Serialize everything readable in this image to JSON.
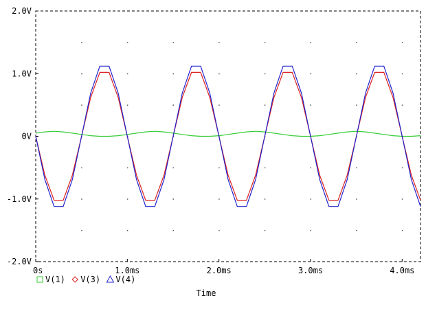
{
  "chart_data": {
    "type": "line",
    "xlabel": "Time",
    "ylabel": "",
    "xlim": [
      0,
      4.2
    ],
    "ylim": [
      -2.0,
      2.0
    ],
    "x_unit": "ms",
    "x_ticks": [
      {
        "value": 0,
        "label": "0s"
      },
      {
        "value": 1.0,
        "label": "1.0ms"
      },
      {
        "value": 2.0,
        "label": "2.0ms"
      },
      {
        "value": 3.0,
        "label": "3.0ms"
      },
      {
        "value": 4.0,
        "label": "4.0ms"
      }
    ],
    "y_ticks": [
      {
        "value": 2.0,
        "label": "2.0V"
      },
      {
        "value": 1.0,
        "label": "1.0V"
      },
      {
        "value": 0,
        "label": "0V"
      },
      {
        "value": -1.0,
        "label": "-1.0V"
      },
      {
        "value": -2.0,
        "label": "-2.0V"
      }
    ],
    "grid": "dotted",
    "legend_position": "bottom-left",
    "series": [
      {
        "name": "V(1)",
        "color": "#33cc33",
        "marker": "square",
        "x": [
          0,
          0.1,
          0.2,
          0.3,
          0.4,
          0.5,
          0.6,
          0.7,
          0.8,
          0.9,
          1.0,
          1.1,
          1.2,
          1.3,
          1.4,
          1.5,
          1.6,
          1.7,
          1.8,
          1.9,
          2.0,
          2.1,
          2.2,
          2.3,
          2.4,
          2.5,
          2.6,
          2.7,
          2.8,
          2.9,
          3.0,
          3.1,
          3.2,
          3.3,
          3.4,
          3.5,
          3.6,
          3.7,
          3.8,
          3.9,
          4.0,
          4.1,
          4.2
        ],
        "y": [
          0.05,
          0.07,
          0.08,
          0.07,
          0.05,
          0.03,
          0.01,
          0.0,
          0.0,
          0.01,
          0.03,
          0.05,
          0.07,
          0.08,
          0.07,
          0.05,
          0.03,
          0.01,
          0.0,
          0.0,
          0.01,
          0.03,
          0.05,
          0.07,
          0.08,
          0.07,
          0.05,
          0.03,
          0.01,
          0.0,
          0.0,
          0.01,
          0.03,
          0.05,
          0.07,
          0.08,
          0.07,
          0.05,
          0.03,
          0.01,
          0.0,
          0.0,
          0.01
        ]
      },
      {
        "name": "V(3)",
        "color": "#dd2222",
        "marker": "diamond",
        "x": [
          0,
          0.1,
          0.2,
          0.3,
          0.4,
          0.5,
          0.6,
          0.7,
          0.8,
          0.9,
          1.0,
          1.1,
          1.2,
          1.3,
          1.4,
          1.5,
          1.6,
          1.7,
          1.8,
          1.9,
          2.0,
          2.1,
          2.2,
          2.3,
          2.4,
          2.5,
          2.6,
          2.7,
          2.8,
          2.9,
          3.0,
          3.1,
          3.2,
          3.3,
          3.4,
          3.5,
          3.6,
          3.7,
          3.8,
          3.9,
          4.0,
          4.1,
          4.2
        ],
        "y": [
          0.0,
          -0.62,
          -1.02,
          -1.02,
          -0.62,
          0.0,
          0.62,
          1.02,
          1.02,
          0.62,
          0.0,
          -0.62,
          -1.02,
          -1.02,
          -0.62,
          0.0,
          0.62,
          1.02,
          1.02,
          0.62,
          0.0,
          -0.62,
          -1.02,
          -1.02,
          -0.62,
          0.0,
          0.62,
          1.02,
          1.02,
          0.62,
          0.0,
          -0.62,
          -1.02,
          -1.02,
          -0.62,
          0.0,
          0.62,
          1.02,
          1.02,
          0.62,
          0.0,
          -0.62,
          -1.02
        ]
      },
      {
        "name": "V(4)",
        "color": "#2222cc",
        "marker": "triangle",
        "x": [
          0,
          0.1,
          0.2,
          0.3,
          0.4,
          0.5,
          0.6,
          0.7,
          0.8,
          0.9,
          1.0,
          1.1,
          1.2,
          1.3,
          1.4,
          1.5,
          1.6,
          1.7,
          1.8,
          1.9,
          2.0,
          2.1,
          2.2,
          2.3,
          2.4,
          2.5,
          2.6,
          2.7,
          2.8,
          2.9,
          3.0,
          3.1,
          3.2,
          3.3,
          3.4,
          3.5,
          3.6,
          3.7,
          3.8,
          3.9,
          4.0,
          4.1,
          4.2
        ],
        "y": [
          0.0,
          -0.69,
          -1.12,
          -1.12,
          -0.69,
          0.0,
          0.69,
          1.12,
          1.12,
          0.69,
          0.0,
          -0.69,
          -1.12,
          -1.12,
          -0.69,
          0.0,
          0.69,
          1.12,
          1.12,
          0.69,
          0.0,
          -0.69,
          -1.12,
          -1.12,
          -0.69,
          0.0,
          0.69,
          1.12,
          1.12,
          0.69,
          0.0,
          -0.69,
          -1.12,
          -1.12,
          -0.69,
          0.0,
          0.69,
          1.12,
          1.12,
          0.69,
          0.0,
          -0.69,
          -1.12
        ]
      }
    ]
  }
}
